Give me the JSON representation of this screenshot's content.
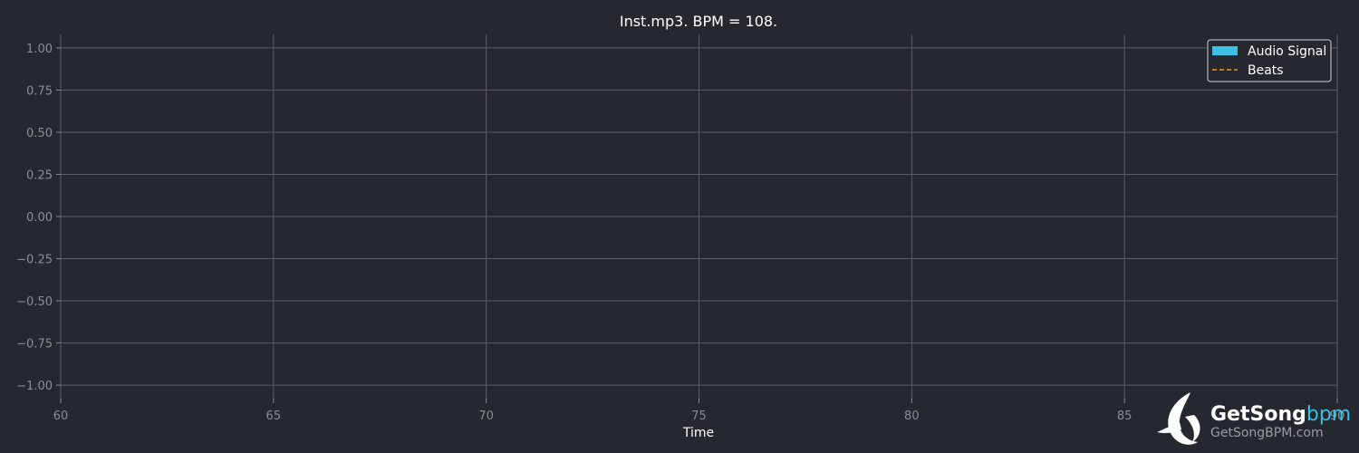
{
  "chart_data": {
    "type": "line",
    "title": "Inst.mp3. BPM = 108.",
    "xlabel": "Time",
    "ylabel": "",
    "xlim": [
      60,
      90
    ],
    "ylim": [
      -1.08,
      1.08
    ],
    "x_ticks": [
      60,
      65,
      70,
      75,
      80,
      85,
      90
    ],
    "y_ticks": [
      1.0,
      0.75,
      0.5,
      0.25,
      0.0,
      -0.25,
      -0.5,
      -0.75,
      -1.0
    ],
    "grid": true,
    "legend_position": "top-right",
    "series": [
      {
        "name": "Audio Signal",
        "color": "#3dbfe6",
        "style": "solid",
        "x": [],
        "y": []
      },
      {
        "name": "Beats",
        "color": "#e69520",
        "style": "dashed",
        "x": [],
        "y": []
      }
    ]
  },
  "watermark": {
    "brand_main": "GetSong",
    "brand_accent": "bpm",
    "brand_url": "GetSongBPM.com",
    "accent_color": "#3dbfe6"
  }
}
